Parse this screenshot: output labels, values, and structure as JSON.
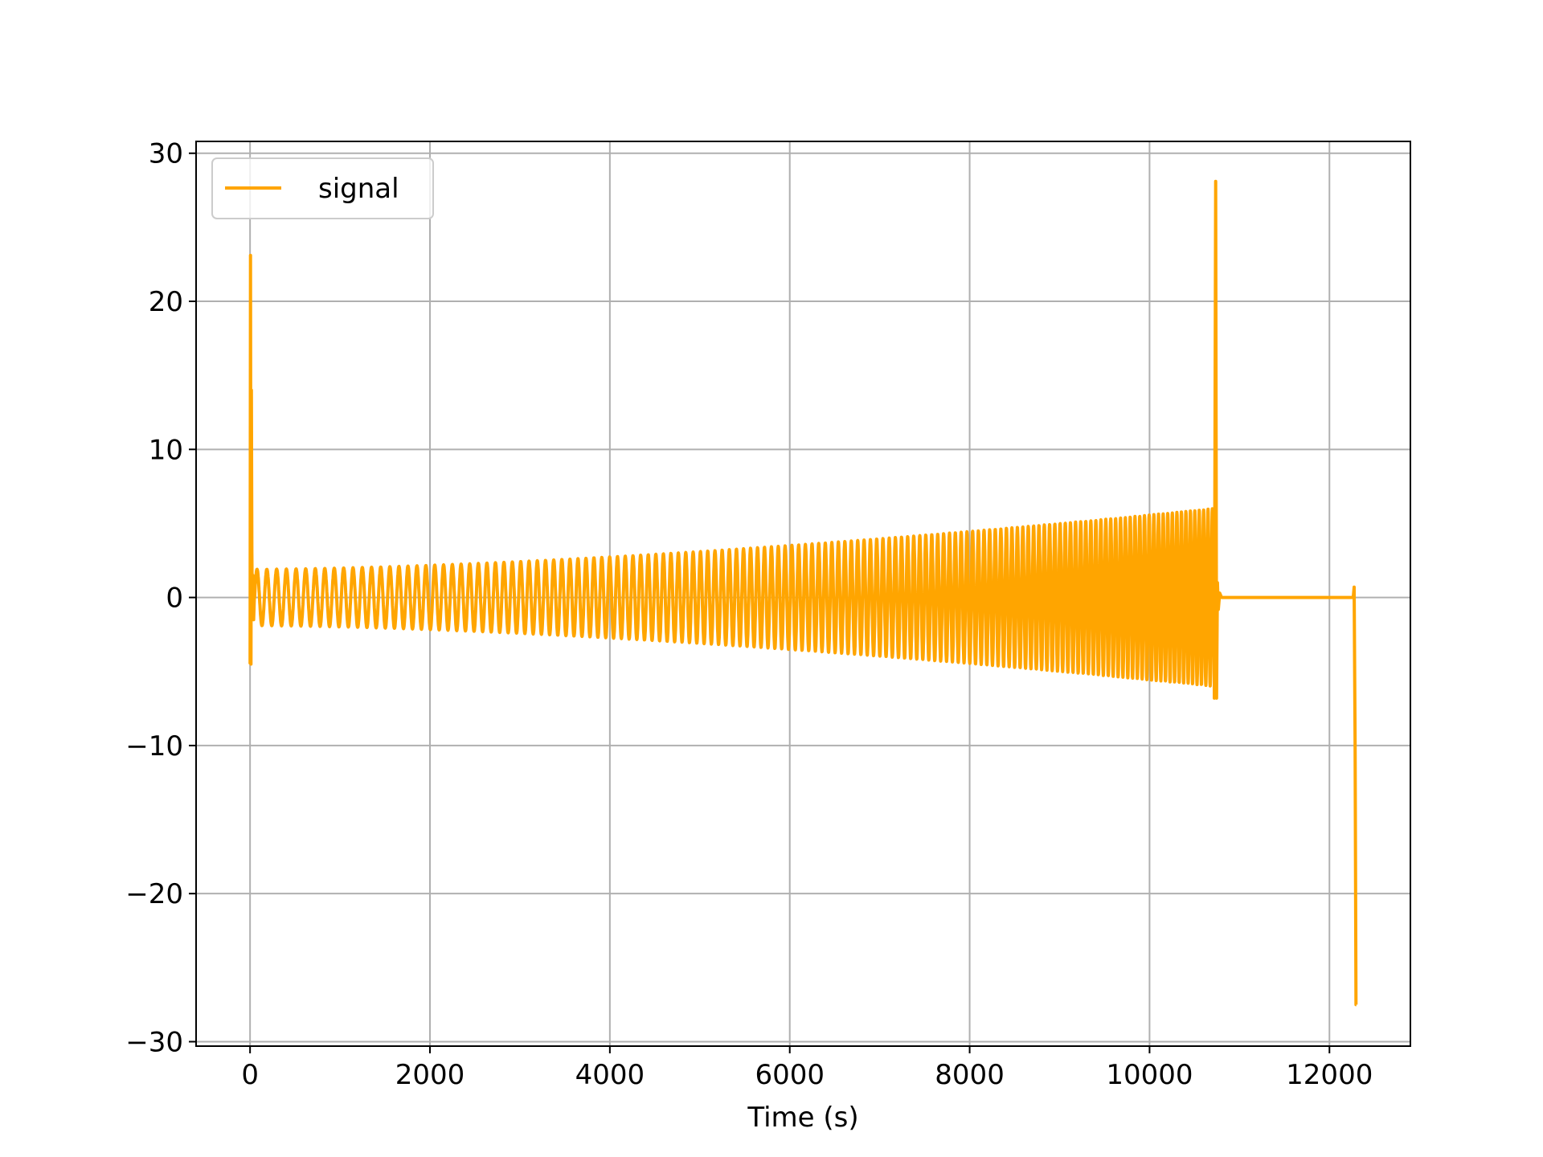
{
  "chart_data": {
    "type": "line",
    "title": "",
    "xlabel": "Time (s)",
    "ylabel": "",
    "xlim": [
      -600,
      12900
    ],
    "ylim": [
      -30.3,
      30.8
    ],
    "xticks": [
      0,
      2000,
      4000,
      6000,
      8000,
      10000,
      12000
    ],
    "xtick_labels": [
      "0",
      "2000",
      "4000",
      "6000",
      "8000",
      "10000",
      "12000"
    ],
    "yticks": [
      -30,
      -20,
      -10,
      0,
      10,
      20,
      30
    ],
    "ytick_labels": [
      "−30",
      "−20",
      "−10",
      "0",
      "10",
      "20",
      "30"
    ],
    "grid": true,
    "legend": {
      "position": "upper-left",
      "entries": [
        {
          "label": "signal",
          "color": "#ffa500"
        }
      ]
    },
    "series": [
      {
        "name": "signal",
        "color": "#ffa500",
        "segments": [
          {
            "kind": "points",
            "x": [
              0,
              5,
              10,
              15,
              20,
              25,
              30,
              40,
              50
            ],
            "y": [
              -4.5,
              23.1,
              -4.5,
              14.0,
              3.0,
              -1.0,
              1.5,
              -1.5,
              0.5
            ]
          },
          {
            "kind": "oscillation",
            "x_start": 50,
            "x_end": 10720,
            "period_start": 110,
            "period_end": 48,
            "amplitude_start": 1.9,
            "amplitude_end": 6.0
          },
          {
            "kind": "points",
            "x": [
              10720,
              10735,
              10745,
              10755,
              10765,
              10780,
              10800
            ],
            "y": [
              -6.8,
              28.1,
              -6.8,
              1.0,
              -0.8,
              0.3,
              0.0
            ]
          },
          {
            "kind": "points",
            "x": [
              10800,
              12265,
              12275,
              12285,
              12295,
              12300
            ],
            "y": [
              0.0,
              0.0,
              0.7,
              -10.0,
              -27.5,
              -27.5
            ]
          }
        ]
      }
    ]
  }
}
